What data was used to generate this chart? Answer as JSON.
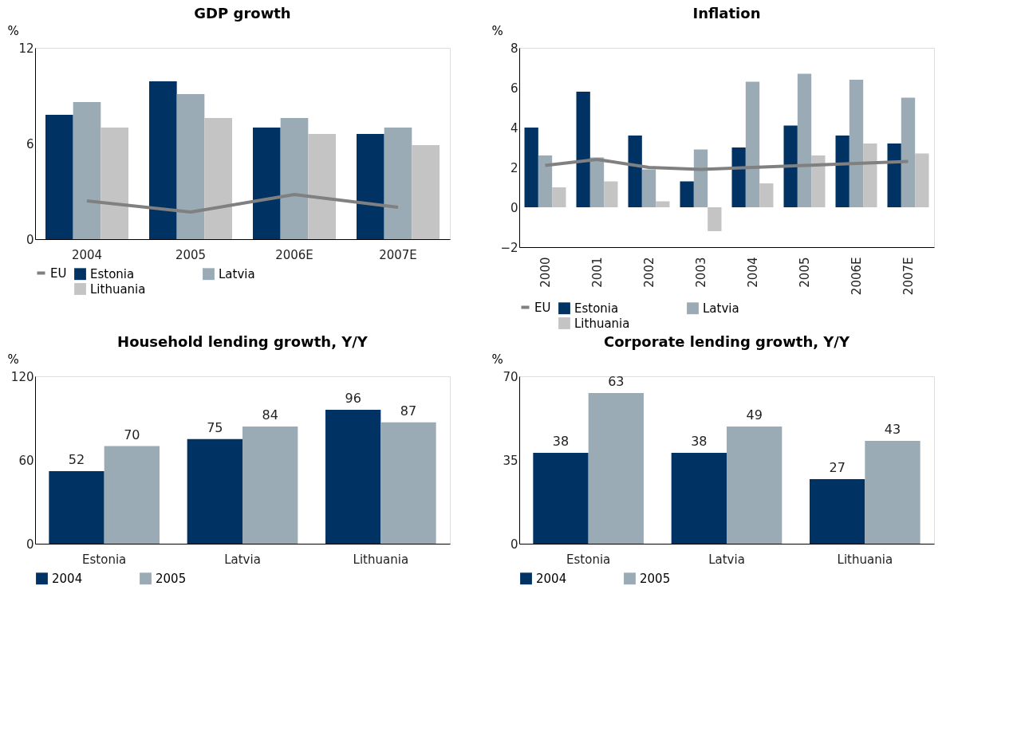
{
  "chart_data": [
    {
      "type": "bar",
      "title": "GDP growth",
      "ylabel": "%",
      "categories": [
        "2004",
        "2005",
        "2006E",
        "2007E"
      ],
      "ylim": [
        0,
        12
      ],
      "yticks": [
        0,
        6,
        12
      ],
      "grid": false,
      "legend": "bottom",
      "series": [
        {
          "name": "Estonia",
          "color": "#003263",
          "values": [
            7.8,
            9.9,
            7.0,
            6.6
          ]
        },
        {
          "name": "Latvia",
          "color": "#9aabb5",
          "values": [
            8.6,
            9.1,
            7.6,
            7.0
          ]
        },
        {
          "name": "Lithuania",
          "color": "#c4c4c4",
          "values": [
            7.0,
            7.6,
            6.6,
            5.9
          ]
        },
        {
          "name": "EU",
          "color": "#808080",
          "type": "line",
          "values": [
            2.4,
            1.7,
            2.8,
            2.0
          ]
        }
      ]
    },
    {
      "type": "bar",
      "title": "Inflation",
      "ylabel": "%",
      "categories": [
        "2000",
        "2001",
        "2002",
        "2003",
        "2004",
        "2005",
        "2006E",
        "2007E"
      ],
      "ylim": [
        -2,
        8
      ],
      "yticks": [
        -2,
        0,
        2,
        4,
        6,
        8
      ],
      "grid": false,
      "legend": "bottom",
      "series": [
        {
          "name": "Estonia",
          "color": "#003263",
          "values": [
            4.0,
            5.8,
            3.6,
            1.3,
            3.0,
            4.1,
            3.6,
            3.2
          ]
        },
        {
          "name": "Latvia",
          "color": "#9aabb5",
          "values": [
            2.6,
            2.5,
            1.9,
            2.9,
            6.3,
            6.7,
            6.4,
            5.5
          ]
        },
        {
          "name": "Lithuania",
          "color": "#c4c4c4",
          "values": [
            1.0,
            1.3,
            0.3,
            -1.2,
            1.2,
            2.6,
            3.2,
            2.7
          ]
        },
        {
          "name": "EU",
          "color": "#808080",
          "type": "line",
          "values": [
            2.1,
            2.4,
            2.0,
            1.9,
            2.0,
            2.1,
            2.2,
            2.3
          ]
        }
      ]
    },
    {
      "type": "bar",
      "title": "Household lending growth, Y/Y",
      "ylabel": "%",
      "categories": [
        "Estonia",
        "Latvia",
        "Lithuania"
      ],
      "ylim": [
        0,
        120
      ],
      "yticks": [
        0,
        60,
        120
      ],
      "grid": false,
      "legend": "bottom",
      "data_labels": true,
      "series": [
        {
          "name": "2004",
          "color": "#003263",
          "values": [
            52,
            75,
            96
          ]
        },
        {
          "name": "2005",
          "color": "#9aabb5",
          "values": [
            70,
            84,
            87
          ]
        }
      ]
    },
    {
      "type": "bar",
      "title": "Corporate lending growth, Y/Y",
      "ylabel": "%",
      "categories": [
        "Estonia",
        "Latvia",
        "Lithuania"
      ],
      "ylim": [
        0,
        70
      ],
      "yticks": [
        0,
        35,
        70
      ],
      "grid": false,
      "legend": "bottom",
      "data_labels": true,
      "series": [
        {
          "name": "2004",
          "color": "#003263",
          "values": [
            38,
            38,
            27
          ]
        },
        {
          "name": "2005",
          "color": "#9aabb5",
          "values": [
            63,
            49,
            43
          ]
        }
      ]
    }
  ]
}
